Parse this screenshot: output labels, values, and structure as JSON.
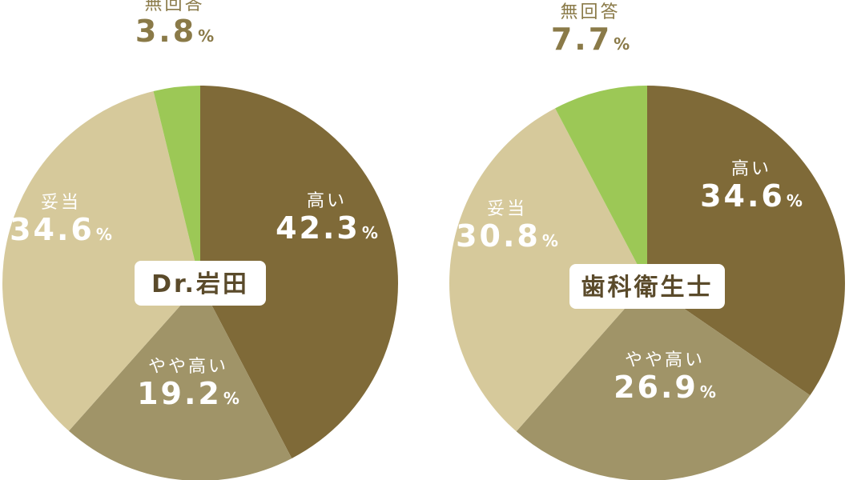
{
  "chart_data": [
    {
      "type": "pie",
      "center_label": "Dr.岩田",
      "categories": [
        "高い",
        "やや高い",
        "妥当",
        "無回答"
      ],
      "values": [
        42.3,
        19.2,
        34.6,
        3.8
      ],
      "value_labels": [
        "42.3",
        "19.2",
        "34.6",
        "3.8"
      ],
      "colors": [
        "#7f6a38",
        "#a09468",
        "#d6c99b",
        "#9cc856"
      ],
      "start": "12 o'clock",
      "direction": "clockwise"
    },
    {
      "type": "pie",
      "center_label": "歯科衛生士",
      "categories": [
        "高い",
        "やや高い",
        "妥当",
        "無回答"
      ],
      "values": [
        34.6,
        26.9,
        30.8,
        7.7
      ],
      "value_labels": [
        "34.6",
        "26.9",
        "30.8",
        "7.7"
      ],
      "colors": [
        "#7f6a38",
        "#a09468",
        "#d6c99b",
        "#9cc856"
      ],
      "start": "12 o'clock",
      "direction": "clockwise"
    }
  ],
  "style": {
    "text_light": "#ffffff",
    "text_outside": "#8a7a48",
    "label_box": "#ffffff",
    "label_text": "#5a4a2a"
  },
  "unit": "%"
}
